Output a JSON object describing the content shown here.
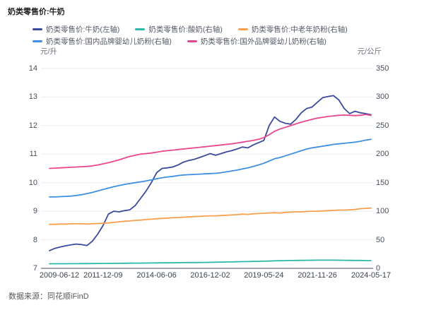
{
  "title": "奶类零售价:牛奶",
  "footer": {
    "source_label": "数据来源：同花顺iFinD"
  },
  "chart_data": {
    "type": "line",
    "title": "奶类零售价:牛奶",
    "grid": true,
    "legend_position": "top",
    "legend_rows": [
      [
        0,
        1,
        2
      ],
      [
        3,
        4
      ]
    ],
    "left_axis": {
      "unit": "元/升",
      "min": 7,
      "max": 14,
      "step": 1,
      "tick_labels": [
        "14",
        "13",
        "12",
        "11",
        "10",
        "9",
        "8",
        "7"
      ]
    },
    "right_axis": {
      "unit": "元/公斤",
      "min": 0,
      "max": 350,
      "step": 50,
      "tick_labels": [
        "350",
        "300",
        "250",
        "200",
        "150",
        "100",
        "50",
        "0"
      ]
    },
    "x_tick_labels": [
      "2009-06-12",
      "2011-12-09",
      "2014-06-06",
      "2016-12-02",
      "2019-05-24",
      "2021-11-26",
      "2024-05-17"
    ],
    "colors": {
      "grid": "#ebebf2",
      "axis_line": "#a3a6ae"
    },
    "series": [
      {
        "name": "奶类零售价:牛奶(左轴)",
        "axis": "left",
        "color": "#3a4b9c",
        "values": [
          7.62,
          7.7,
          7.75,
          7.79,
          7.82,
          7.85,
          7.83,
          7.8,
          7.95,
          8.2,
          8.5,
          8.9,
          9.0,
          8.98,
          9.02,
          9.05,
          9.2,
          9.45,
          9.7,
          10.0,
          10.35,
          10.5,
          10.52,
          10.55,
          10.62,
          10.72,
          10.78,
          10.82,
          10.88,
          10.95,
          11.02,
          10.96,
          11.02,
          11.08,
          11.12,
          11.18,
          11.25,
          11.22,
          11.32,
          11.4,
          11.48,
          12.0,
          12.3,
          12.15,
          12.08,
          12.05,
          12.22,
          12.45,
          12.6,
          12.65,
          12.82,
          12.98,
          13.02,
          13.05,
          12.9,
          12.6,
          12.42,
          12.5,
          12.45,
          12.42,
          12.38
        ]
      },
      {
        "name": "奶类零售价:酸奶(右轴)",
        "axis": "right",
        "color": "#2cb8a8",
        "values": [
          8,
          8,
          8.1,
          8.1,
          8.2,
          8.2,
          8.3,
          8.3,
          8.4,
          8.5,
          8.5,
          8.6,
          8.7,
          8.8,
          8.9,
          9,
          9.1,
          9.2,
          9.3,
          9.4,
          9.5,
          9.6,
          9.7,
          9.8,
          9.9,
          10,
          10.1,
          10.2,
          10.3,
          10.4,
          10.5,
          10.7,
          10.9,
          11.1,
          11.3,
          11.5,
          11.7,
          11.9,
          12.1,
          12.3,
          12.5,
          12.8,
          13.1,
          13.3,
          13.5,
          13.7,
          13.9,
          14,
          14.1,
          14.2,
          14.3,
          14.4,
          14.4,
          14.3,
          14.2,
          14.1,
          14,
          13.9,
          13.8,
          13.6,
          13.5
        ]
      },
      {
        "name": "奶类零售价:中老年奶粉(右轴)",
        "axis": "right",
        "color": "#f6a04e",
        "values": [
          77,
          77,
          77.5,
          77.5,
          78,
          78,
          78,
          77.5,
          78,
          78.5,
          79,
          79.5,
          80.5,
          81.5,
          82.5,
          83,
          84,
          84.5,
          85.5,
          86,
          87,
          87.5,
          88,
          88.5,
          89,
          89.5,
          90,
          90.5,
          91,
          91.5,
          92,
          92,
          92.5,
          93,
          93.5,
          94,
          95,
          94.5,
          95.5,
          96,
          96.5,
          97,
          97.5,
          97,
          98,
          98.5,
          99,
          99,
          99.5,
          100,
          100,
          100.5,
          101,
          101.5,
          102,
          102,
          102.5,
          103,
          104.5,
          105,
          105.5
        ]
      },
      {
        "name": "奶类零售价:国内品牌婴幼儿奶粉(右轴)",
        "axis": "right",
        "color": "#3e8fdf",
        "values": [
          125,
          125,
          125.5,
          126,
          126.5,
          127.5,
          129,
          131,
          133,
          135.5,
          138,
          140.5,
          143,
          145,
          147,
          148.5,
          150,
          151.5,
          153,
          155,
          157,
          158.5,
          160,
          161,
          162.5,
          163.5,
          164,
          164.5,
          165,
          165.5,
          166,
          166.5,
          167.5,
          169,
          170.5,
          172,
          174,
          176,
          178.5,
          181,
          184,
          188,
          192,
          194,
          197,
          200,
          203,
          206,
          209,
          211,
          212.5,
          214,
          215.5,
          217,
          218,
          219,
          220,
          221,
          222.5,
          224.5,
          226
        ]
      },
      {
        "name": "奶类零售价:国外品牌婴幼儿奶粉(右轴)",
        "axis": "right",
        "color": "#e8478f",
        "values": [
          175,
          175.5,
          176,
          176.5,
          177,
          177.5,
          178,
          178.5,
          179.5,
          181,
          183,
          185,
          187.5,
          190,
          193,
          196,
          198,
          200,
          201,
          202,
          203.5,
          205,
          206,
          207,
          208,
          209,
          210,
          211,
          212,
          213,
          214,
          215,
          216,
          217,
          218,
          219.5,
          221,
          222.5,
          224,
          226,
          229,
          234,
          240,
          244,
          247,
          250,
          253,
          256,
          258.5,
          261,
          263,
          264.5,
          266,
          267,
          268,
          268.5,
          268,
          267.5,
          268,
          269.5,
          268
        ]
      }
    ]
  }
}
